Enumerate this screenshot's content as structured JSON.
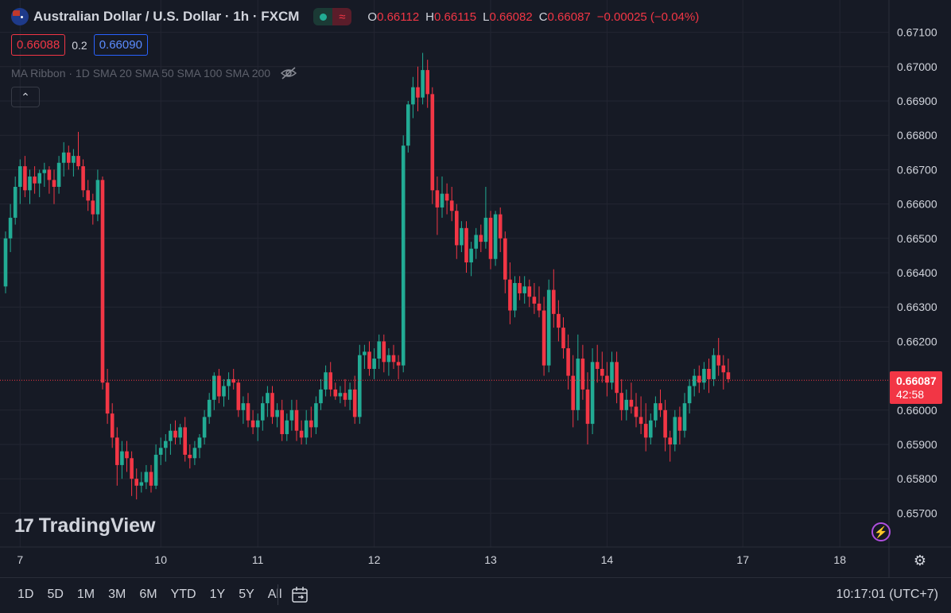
{
  "header": {
    "symbol_title": "Australian Dollar / U.S. Dollar · 1h · FXCM",
    "ohlc": {
      "o_label": "O",
      "o_value": "0.66112",
      "h_label": "H",
      "h_value": "0.66115",
      "l_label": "L",
      "l_value": "0.66082",
      "c_label": "C",
      "c_value": "0.66087",
      "change": "−0.00025 (−0.04%)"
    },
    "sell_price": "0.66088",
    "spread": "0.2",
    "buy_price": "0.66090",
    "indicator_text": "MA Ribbon · 1D SMA 20 SMA 50 SMA 100 SMA 200",
    "collapse_glyph": "⌃"
  },
  "watermark": {
    "logo": "17",
    "text": "TradingView"
  },
  "price_label": {
    "price": "0.66087",
    "countdown": "42:58"
  },
  "toolbar": {
    "periods": [
      "1D",
      "5D",
      "1M",
      "3M",
      "6M",
      "YTD",
      "1Y",
      "5Y",
      "All"
    ],
    "time": "10:17:01 (UTC+7)"
  },
  "colors": {
    "up": "#22ab94",
    "down": "#f23645",
    "background": "#161a25",
    "grid": "#232632",
    "text": "#d1d4dc"
  },
  "icons": {
    "eye_hidden": "eye-slash-icon",
    "calendar": "calendar-range-icon",
    "settings": "gear-icon",
    "bolt": "lightning-icon"
  },
  "chart_data": {
    "type": "candlestick",
    "title": "Australian Dollar / U.S. Dollar · 1h · FXCM",
    "ylim": [
      0.6565,
      0.6715
    ],
    "y_ticks": [
      "0.67100",
      "0.67000",
      "0.66900",
      "0.66800",
      "0.66700",
      "0.66600",
      "0.66500",
      "0.66400",
      "0.66300",
      "0.66200",
      "0.66000",
      "0.65900",
      "0.65800",
      "0.65700"
    ],
    "x_ticks": [
      {
        "label": "7",
        "index": 3
      },
      {
        "label": "10",
        "index": 32
      },
      {
        "label": "11",
        "index": 52
      },
      {
        "label": "12",
        "index": 76
      },
      {
        "label": "13",
        "index": 100
      },
      {
        "label": "14",
        "index": 124
      },
      {
        "label": "17",
        "index": 152
      },
      {
        "label": "18",
        "index": 172
      }
    ],
    "last_price": 0.66087,
    "candles": [
      [
        0.6636,
        0.6652,
        0.6634,
        0.665
      ],
      [
        0.665,
        0.666,
        0.6646,
        0.6656
      ],
      [
        0.6656,
        0.6668,
        0.6654,
        0.6665
      ],
      [
        0.6665,
        0.6673,
        0.666,
        0.6671
      ],
      [
        0.6671,
        0.6674,
        0.6662,
        0.6664
      ],
      [
        0.6664,
        0.667,
        0.666,
        0.6668
      ],
      [
        0.6668,
        0.6671,
        0.6663,
        0.6666
      ],
      [
        0.6666,
        0.667,
        0.6662,
        0.6669
      ],
      [
        0.6669,
        0.6672,
        0.6665,
        0.667
      ],
      [
        0.667,
        0.6671,
        0.6663,
        0.6667
      ],
      [
        0.6667,
        0.667,
        0.666,
        0.6665
      ],
      [
        0.6665,
        0.6674,
        0.6663,
        0.6672
      ],
      [
        0.6672,
        0.6678,
        0.6668,
        0.6675
      ],
      [
        0.6675,
        0.6677,
        0.667,
        0.6672
      ],
      [
        0.6672,
        0.6676,
        0.6668,
        0.6674
      ],
      [
        0.6674,
        0.6681,
        0.667,
        0.6671
      ],
      [
        0.6671,
        0.6673,
        0.6662,
        0.6664
      ],
      [
        0.6664,
        0.6667,
        0.6658,
        0.6661
      ],
      [
        0.6661,
        0.6663,
        0.6654,
        0.6657
      ],
      [
        0.6657,
        0.667,
        0.6655,
        0.6667
      ],
      [
        0.6667,
        0.6668,
        0.6606,
        0.6608
      ],
      [
        0.6608,
        0.6612,
        0.6596,
        0.6599
      ],
      [
        0.6599,
        0.6602,
        0.6589,
        0.6592
      ],
      [
        0.6592,
        0.6595,
        0.6578,
        0.6584
      ],
      [
        0.6584,
        0.6591,
        0.658,
        0.6588
      ],
      [
        0.6588,
        0.6591,
        0.6582,
        0.6586
      ],
      [
        0.6586,
        0.6588,
        0.6575,
        0.658
      ],
      [
        0.658,
        0.6583,
        0.6574,
        0.6578
      ],
      [
        0.6578,
        0.6582,
        0.6576,
        0.6579
      ],
      [
        0.6579,
        0.6584,
        0.6577,
        0.6582
      ],
      [
        0.6582,
        0.6584,
        0.6576,
        0.6578
      ],
      [
        0.6578,
        0.659,
        0.6577,
        0.6587
      ],
      [
        0.6587,
        0.6592,
        0.6584,
        0.6589
      ],
      [
        0.6589,
        0.6593,
        0.6585,
        0.6591
      ],
      [
        0.6591,
        0.6596,
        0.6587,
        0.6594
      ],
      [
        0.6594,
        0.6597,
        0.659,
        0.6592
      ],
      [
        0.6592,
        0.6596,
        0.659,
        0.6595
      ],
      [
        0.6595,
        0.6598,
        0.6585,
        0.6587
      ],
      [
        0.6587,
        0.659,
        0.6583,
        0.6586
      ],
      [
        0.6586,
        0.6591,
        0.6584,
        0.6589
      ],
      [
        0.6589,
        0.6593,
        0.6586,
        0.6592
      ],
      [
        0.6592,
        0.66,
        0.659,
        0.6598
      ],
      [
        0.6598,
        0.6605,
        0.6596,
        0.6603
      ],
      [
        0.6603,
        0.6611,
        0.66,
        0.661
      ],
      [
        0.661,
        0.6612,
        0.6602,
        0.6604
      ],
      [
        0.6604,
        0.6609,
        0.6601,
        0.6607
      ],
      [
        0.6607,
        0.6611,
        0.6603,
        0.6609
      ],
      [
        0.6609,
        0.6612,
        0.6606,
        0.6608
      ],
      [
        0.6608,
        0.6609,
        0.6598,
        0.66
      ],
      [
        0.66,
        0.6604,
        0.6596,
        0.6602
      ],
      [
        0.6602,
        0.6605,
        0.6595,
        0.6597
      ],
      [
        0.6597,
        0.66,
        0.6593,
        0.6595
      ],
      [
        0.6595,
        0.6599,
        0.6591,
        0.6597
      ],
      [
        0.6597,
        0.6604,
        0.6594,
        0.6602
      ],
      [
        0.6602,
        0.6607,
        0.6598,
        0.6605
      ],
      [
        0.6605,
        0.6607,
        0.6596,
        0.6598
      ],
      [
        0.6598,
        0.6602,
        0.6595,
        0.66
      ],
      [
        0.66,
        0.6603,
        0.6591,
        0.6593
      ],
      [
        0.6593,
        0.6599,
        0.6591,
        0.6597
      ],
      [
        0.6597,
        0.6603,
        0.6594,
        0.66
      ],
      [
        0.66,
        0.6603,
        0.6591,
        0.6594
      ],
      [
        0.6594,
        0.6597,
        0.659,
        0.6592
      ],
      [
        0.6592,
        0.66,
        0.659,
        0.6597
      ],
      [
        0.6597,
        0.6601,
        0.6592,
        0.6595
      ],
      [
        0.6595,
        0.6604,
        0.6593,
        0.6602
      ],
      [
        0.6602,
        0.6609,
        0.66,
        0.6606
      ],
      [
        0.6606,
        0.6613,
        0.6604,
        0.6611
      ],
      [
        0.6611,
        0.6614,
        0.6604,
        0.6606
      ],
      [
        0.6606,
        0.6608,
        0.6603,
        0.6604
      ],
      [
        0.6604,
        0.6607,
        0.6602,
        0.6605
      ],
      [
        0.6605,
        0.6609,
        0.6601,
        0.6603
      ],
      [
        0.6603,
        0.6608,
        0.66,
        0.6606
      ],
      [
        0.6606,
        0.661,
        0.6596,
        0.6598
      ],
      [
        0.6598,
        0.6619,
        0.6596,
        0.6616
      ],
      [
        0.6616,
        0.6619,
        0.6612,
        0.6617
      ],
      [
        0.6617,
        0.662,
        0.661,
        0.6612
      ],
      [
        0.6612,
        0.6618,
        0.6609,
        0.6615
      ],
      [
        0.6615,
        0.6622,
        0.6612,
        0.662
      ],
      [
        0.662,
        0.6622,
        0.6611,
        0.6614
      ],
      [
        0.6614,
        0.6618,
        0.661,
        0.6616
      ],
      [
        0.6616,
        0.6619,
        0.6612,
        0.6614
      ],
      [
        0.6614,
        0.6616,
        0.6609,
        0.6613
      ],
      [
        0.6613,
        0.668,
        0.6611,
        0.6677
      ],
      [
        0.6677,
        0.669,
        0.6675,
        0.6689
      ],
      [
        0.6689,
        0.6697,
        0.6685,
        0.6694
      ],
      [
        0.6694,
        0.67,
        0.6687,
        0.6691
      ],
      [
        0.6691,
        0.6704,
        0.6689,
        0.6699
      ],
      [
        0.6699,
        0.6702,
        0.6688,
        0.6692
      ],
      [
        0.6692,
        0.6694,
        0.666,
        0.6664
      ],
      [
        0.6664,
        0.6668,
        0.6651,
        0.6659
      ],
      [
        0.6659,
        0.6668,
        0.6656,
        0.6663
      ],
      [
        0.6663,
        0.6666,
        0.6657,
        0.6661
      ],
      [
        0.6661,
        0.6665,
        0.6655,
        0.6658
      ],
      [
        0.6658,
        0.666,
        0.6644,
        0.6648
      ],
      [
        0.6648,
        0.6655,
        0.6646,
        0.6653
      ],
      [
        0.6653,
        0.6655,
        0.664,
        0.6643
      ],
      [
        0.6643,
        0.6649,
        0.6639,
        0.6647
      ],
      [
        0.6647,
        0.6653,
        0.6644,
        0.6651
      ],
      [
        0.6651,
        0.6654,
        0.6646,
        0.6649
      ],
      [
        0.6649,
        0.6665,
        0.6647,
        0.6656
      ],
      [
        0.6656,
        0.6658,
        0.6641,
        0.6644
      ],
      [
        0.6644,
        0.6658,
        0.6642,
        0.6657
      ],
      [
        0.6657,
        0.6659,
        0.6646,
        0.665
      ],
      [
        0.665,
        0.6652,
        0.6634,
        0.6638
      ],
      [
        0.6638,
        0.6643,
        0.6625,
        0.6629
      ],
      [
        0.6629,
        0.6639,
        0.6627,
        0.6637
      ],
      [
        0.6637,
        0.6639,
        0.6632,
        0.6634
      ],
      [
        0.6634,
        0.6639,
        0.6631,
        0.6636
      ],
      [
        0.6636,
        0.6638,
        0.663,
        0.6633
      ],
      [
        0.6633,
        0.6637,
        0.6628,
        0.6631
      ],
      [
        0.6631,
        0.6636,
        0.6627,
        0.6629
      ],
      [
        0.6629,
        0.6633,
        0.661,
        0.6613
      ],
      [
        0.6613,
        0.6638,
        0.6611,
        0.6635
      ],
      [
        0.6635,
        0.6641,
        0.6624,
        0.6628
      ],
      [
        0.6628,
        0.6632,
        0.662,
        0.6624
      ],
      [
        0.6624,
        0.6627,
        0.6615,
        0.6618
      ],
      [
        0.6618,
        0.6622,
        0.6606,
        0.661
      ],
      [
        0.661,
        0.6616,
        0.6595,
        0.66
      ],
      [
        0.66,
        0.6622,
        0.6597,
        0.6615
      ],
      [
        0.6615,
        0.6619,
        0.6603,
        0.6606
      ],
      [
        0.6606,
        0.6611,
        0.659,
        0.6596
      ],
      [
        0.6596,
        0.6618,
        0.6593,
        0.6614
      ],
      [
        0.6614,
        0.6619,
        0.6608,
        0.6612
      ],
      [
        0.6612,
        0.6617,
        0.6608,
        0.661
      ],
      [
        0.661,
        0.6614,
        0.6604,
        0.6608
      ],
      [
        0.6608,
        0.6617,
        0.6606,
        0.6614
      ],
      [
        0.6614,
        0.6617,
        0.6602,
        0.6605
      ],
      [
        0.6605,
        0.6609,
        0.6597,
        0.66
      ],
      [
        0.66,
        0.6606,
        0.6597,
        0.6603
      ],
      [
        0.6603,
        0.6608,
        0.6599,
        0.6601
      ],
      [
        0.6601,
        0.6605,
        0.6595,
        0.6598
      ],
      [
        0.6598,
        0.6604,
        0.6593,
        0.6596
      ],
      [
        0.6596,
        0.6602,
        0.6588,
        0.6592
      ],
      [
        0.6592,
        0.6599,
        0.659,
        0.6597
      ],
      [
        0.6597,
        0.6604,
        0.6595,
        0.6602
      ],
      [
        0.6602,
        0.6606,
        0.6598,
        0.66
      ],
      [
        0.66,
        0.6603,
        0.6588,
        0.6592
      ],
      [
        0.6592,
        0.6594,
        0.6585,
        0.659
      ],
      [
        0.659,
        0.66,
        0.6588,
        0.6598
      ],
      [
        0.6598,
        0.6601,
        0.659,
        0.6594
      ],
      [
        0.6594,
        0.6605,
        0.6592,
        0.6602
      ],
      [
        0.6602,
        0.6609,
        0.6599,
        0.6607
      ],
      [
        0.6607,
        0.6612,
        0.6604,
        0.661
      ],
      [
        0.661,
        0.6613,
        0.6605,
        0.6608
      ],
      [
        0.6608,
        0.6614,
        0.6606,
        0.6612
      ],
      [
        0.6612,
        0.6615,
        0.6605,
        0.6609
      ],
      [
        0.6609,
        0.6618,
        0.6607,
        0.6616
      ],
      [
        0.6616,
        0.6621,
        0.661,
        0.6613
      ],
      [
        0.6613,
        0.6616,
        0.6606,
        0.6611
      ],
      [
        0.6611,
        0.6615,
        0.6608,
        0.6609
      ]
    ]
  }
}
